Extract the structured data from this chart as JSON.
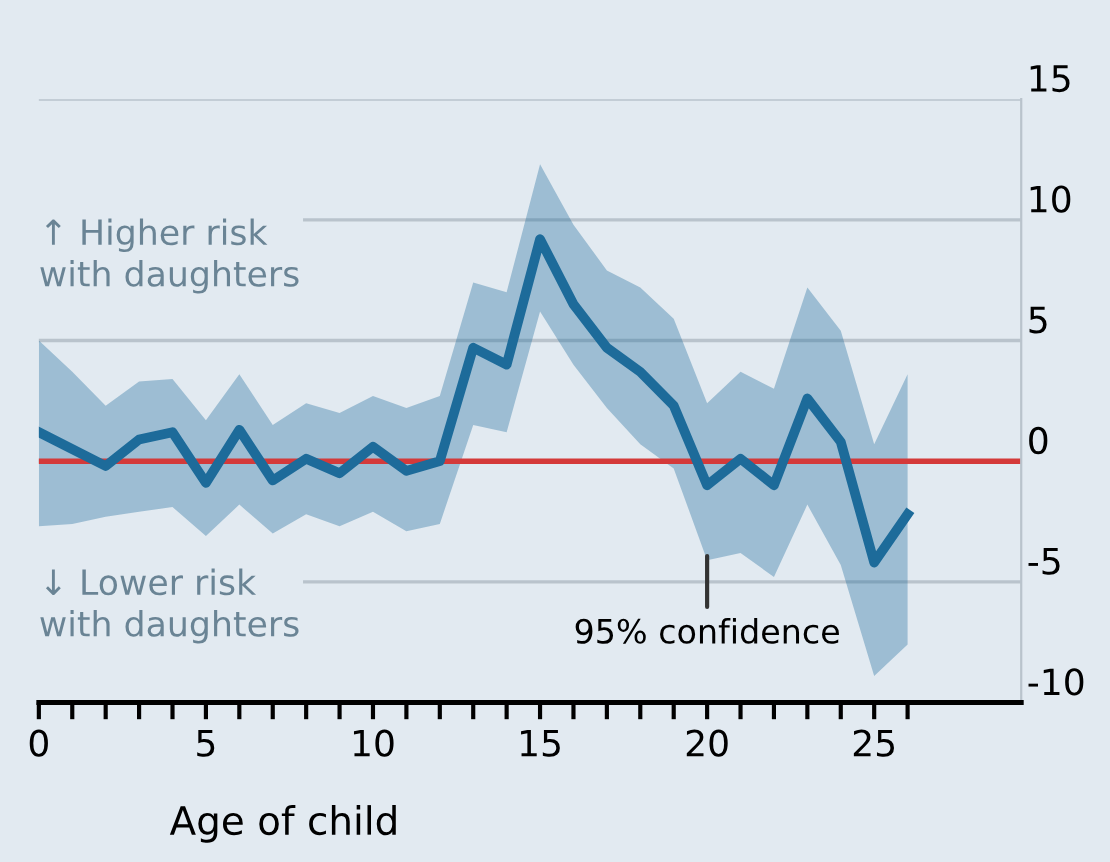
{
  "chart_data": {
    "type": "line",
    "xlabel": "Age of child",
    "x": [
      0,
      1,
      2,
      3,
      4,
      5,
      6,
      7,
      8,
      9,
      10,
      11,
      12,
      13,
      14,
      15,
      16,
      17,
      18,
      19,
      20,
      21,
      22,
      23,
      24,
      25,
      26
    ],
    "series": [
      {
        "color": "#1d6b9a",
        "values": [
          1.2,
          0.5,
          -0.2,
          0.9,
          1.2,
          -0.9,
          1.3,
          -0.8,
          0.1,
          -0.5,
          0.6,
          -0.4,
          0,
          4.7,
          4,
          9.2,
          6.5,
          4.7,
          3.7,
          2.3,
          -1,
          0.1,
          -1,
          2.6,
          0.8,
          -4.2,
          -2.2
        ],
        "upper": [
          5,
          3.7,
          2.3,
          3.3,
          3.4,
          1.7,
          3.6,
          1.5,
          2.4,
          2,
          2.7,
          2.2,
          2.7,
          7.4,
          7,
          12.3,
          9.8,
          7.9,
          7.2,
          5.9,
          2.4,
          3.7,
          3,
          7.2,
          5.4,
          0.7,
          3.6
        ],
        "lower": [
          -2.7,
          -2.6,
          -2.3,
          -2.1,
          -1.9,
          -3.1,
          -1.8,
          -3,
          -2.2,
          -2.7,
          -2.1,
          -2.9,
          -2.6,
          1.5,
          1.2,
          6.2,
          4,
          2.2,
          0.7,
          -0.3,
          -4.1,
          -3.8,
          -4.8,
          -1.8,
          -4.3,
          -8.9,
          -7.6
        ]
      }
    ],
    "xlim": [
      0,
      29.4
    ],
    "xticks": [
      0,
      {
        "value": 1,
        "label": null
      },
      {
        "value": 2,
        "label": null
      },
      {
        "value": 3,
        "label": null
      },
      {
        "value": 4,
        "label": null
      },
      5,
      {
        "value": 6,
        "label": null
      },
      {
        "value": 7,
        "label": null
      },
      {
        "value": 8,
        "label": null
      },
      {
        "value": 9,
        "label": null
      },
      10,
      {
        "value": 11,
        "label": null
      },
      {
        "value": 12,
        "label": null
      },
      {
        "value": 13,
        "label": null
      },
      {
        "value": 14,
        "label": null
      },
      15,
      {
        "value": 16,
        "label": null
      },
      {
        "value": 17,
        "label": null
      },
      {
        "value": 18,
        "label": null
      },
      {
        "value": 19,
        "label": null
      },
      20,
      {
        "value": 21,
        "label": null
      },
      {
        "value": 22,
        "label": null
      },
      {
        "value": 23,
        "label": null
      },
      {
        "value": 24,
        "label": null
      },
      25,
      {
        "value": 26,
        "label": null
      }
    ],
    "ylim": [
      -10,
      15
    ],
    "yticks": [
      -10,
      -5,
      0,
      5,
      10,
      15
    ],
    "grid": "y",
    "marker": "none",
    "line_style": "solid",
    "ref_lines": [
      {
        "axis": "y",
        "value": 0,
        "label": null,
        "color": "#d43a3a"
      }
    ],
    "annotations": [
      "↑ Higher risk\nwith daughters",
      "↓ Lower risk\nwith daughters",
      {
        "text": "95% confidence",
        "x": 20,
        "y": -3.7
      }
    ]
  }
}
